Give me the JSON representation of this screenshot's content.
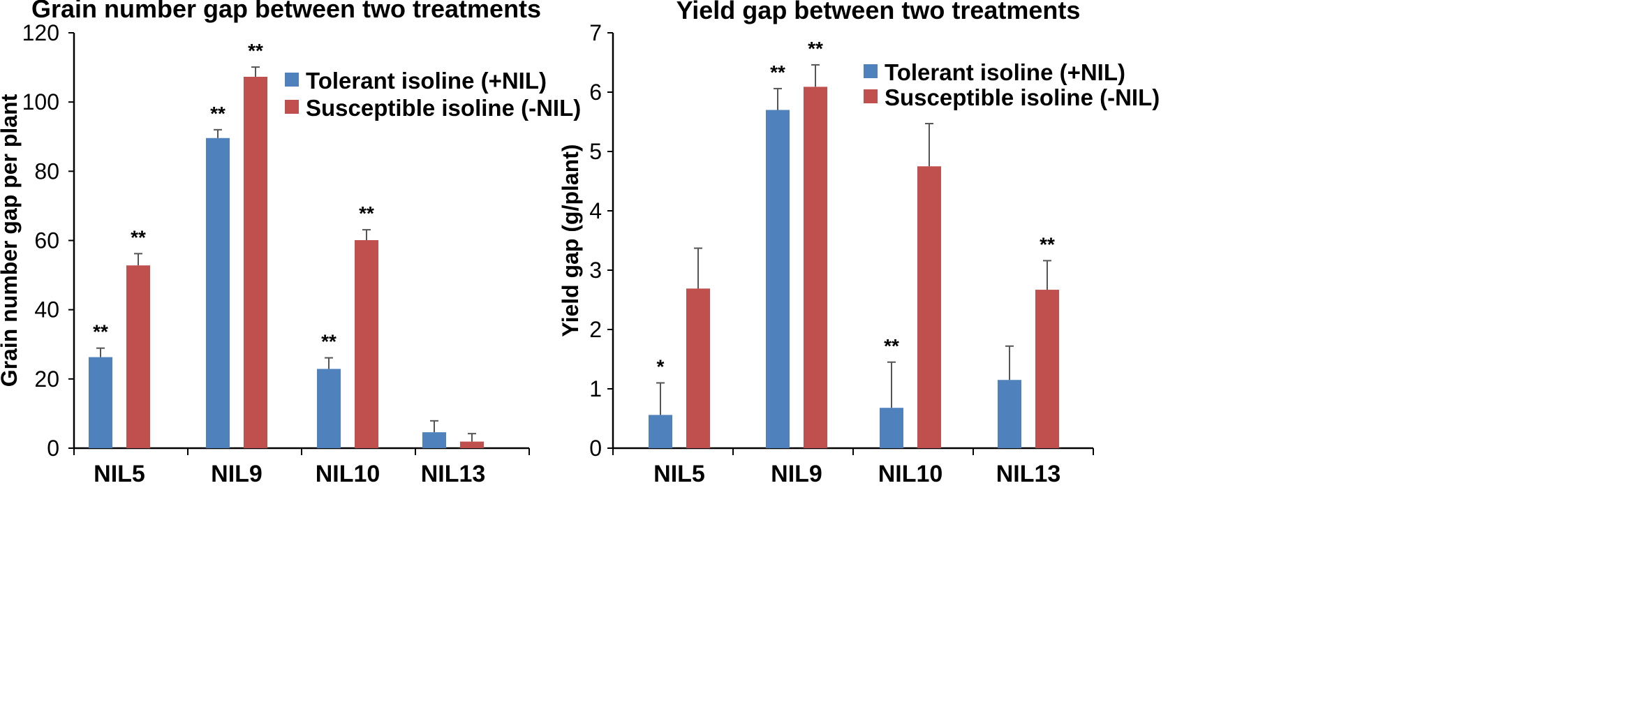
{
  "chart_data": [
    {
      "type": "bar",
      "title": "Grain number gap between two treatments",
      "xlabel": "",
      "ylabel": "Grain number gap per plant",
      "ylim": [
        0,
        120
      ],
      "yticks": [
        "0",
        "20",
        "40",
        "60",
        "80",
        "100",
        "120"
      ],
      "categories": [
        "NIL5",
        "NIL9",
        "NIL10",
        "NIL13"
      ],
      "series": [
        {
          "name": "Tolerant isoline (+NIL)",
          "color": "#4f81bd",
          "values": [
            26.3,
            89.6,
            22.9,
            4.6
          ],
          "errors": [
            2.6,
            2.4,
            3.2,
            3.3
          ],
          "significance": [
            "**",
            "**",
            "**",
            ""
          ]
        },
        {
          "name": "Susceptible isoline (-NIL)",
          "color": "#c0504d",
          "values": [
            52.8,
            107.3,
            60.1,
            1.9
          ],
          "errors": [
            3.4,
            2.8,
            3.0,
            2.3
          ],
          "significance": [
            "**",
            "**",
            "**",
            ""
          ]
        }
      ],
      "legend_position": "top-right"
    },
    {
      "type": "bar",
      "title": "Yield gap between two treatments",
      "xlabel": "",
      "ylabel": "Yield gap (g/plant)",
      "ylim": [
        0,
        7
      ],
      "yticks": [
        "0",
        "1",
        "2",
        "3",
        "4",
        "5",
        "6",
        "7"
      ],
      "categories": [
        "NIL5",
        "NIL9",
        "NIL10",
        "NIL13"
      ],
      "series": [
        {
          "name": "Tolerant isoline (+NIL)",
          "color": "#4f81bd",
          "values": [
            0.56,
            5.7,
            0.68,
            1.15
          ],
          "errors": [
            0.54,
            0.36,
            0.77,
            0.57
          ],
          "significance": [
            "*",
            "**",
            "**",
            ""
          ]
        },
        {
          "name": "Susceptible isoline (-NIL)",
          "color": "#c0504d",
          "values": [
            2.69,
            6.09,
            4.75,
            2.67
          ],
          "errors": [
            0.68,
            0.37,
            0.72,
            0.49
          ],
          "significance": [
            "",
            "**",
            "",
            "**"
          ]
        }
      ],
      "legend_position": "top-right"
    }
  ]
}
